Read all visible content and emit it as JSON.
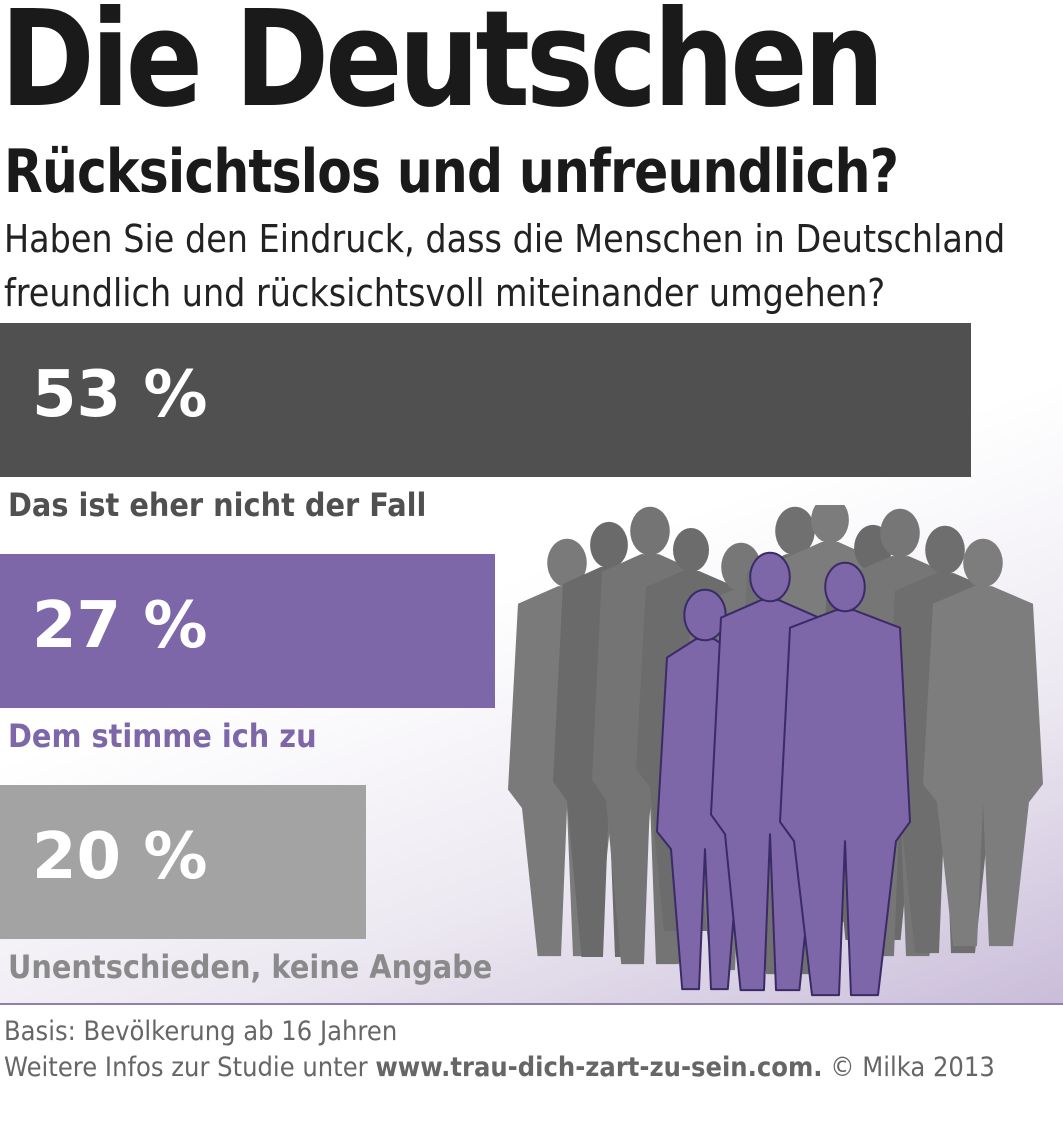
{
  "title": "Die Deutschen",
  "subtitle": "Rücksichtslos und unfreundlich?",
  "question_line1": "Haben Sie den Eindruck, dass die Menschen in Deutschland",
  "question_line2": "freundlich und rücksichtsvoll miteinander umgehen?",
  "chart_data": {
    "type": "bar",
    "orientation": "horizontal",
    "categories": [
      "Das ist eher nicht der Fall",
      "Dem stimme ich zu",
      "Unentschieden, keine Angabe"
    ],
    "values": [
      53,
      27,
      20
    ],
    "value_labels": [
      "53 %",
      "27 %",
      "20 %"
    ],
    "unit": "%",
    "colors": [
      "#505050",
      "#7e67a8",
      "#a3a3a3"
    ],
    "label_colors": [
      "#505050",
      "#7e67a8",
      "#8a8a8a"
    ]
  },
  "illustration": {
    "icon": "crowd-silhouette-icon",
    "crowd_color": "#6e6e6e",
    "highlight_color": "#7e67a8"
  },
  "footer": {
    "basis": "Basis: Bevölkerung ab 16 Jahren",
    "info_prefix": "Weitere Infos zur Studie unter ",
    "url": "www.trau-dich-zart-zu-sein.com.",
    "copyright": " © Milka 2013"
  }
}
